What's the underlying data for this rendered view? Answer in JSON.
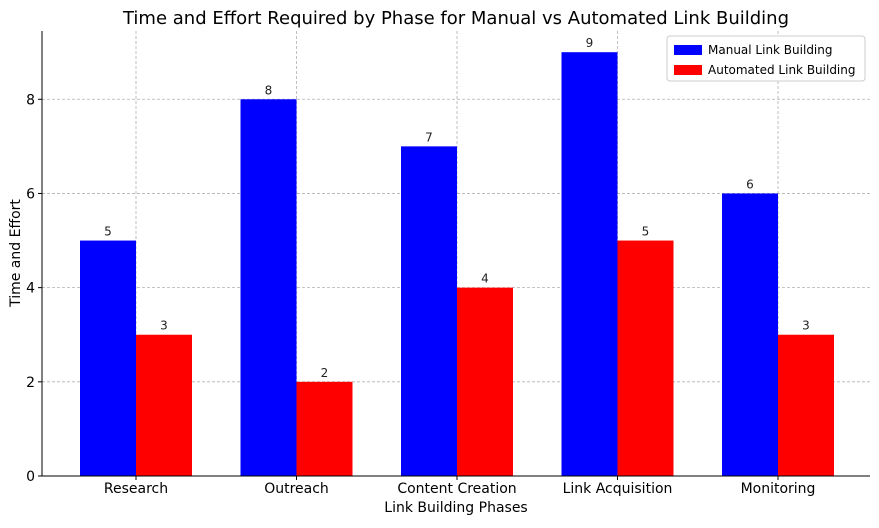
{
  "chart_data": {
    "type": "bar",
    "title": "Time and Effort Required by Phase for Manual vs Automated Link Building",
    "xlabel": "Link Building Phases",
    "ylabel": "Time and Effort",
    "categories": [
      "Research",
      "Outreach",
      "Content Creation",
      "Link Acquisition",
      "Monitoring"
    ],
    "series": [
      {
        "name": "Manual Link Building",
        "color": "#0000ff",
        "values": [
          5,
          8,
          7,
          9,
          6
        ]
      },
      {
        "name": "Automated Link Building",
        "color": "#ff0000",
        "values": [
          3,
          2,
          4,
          5,
          3
        ]
      }
    ],
    "ylim": [
      0,
      9.45
    ],
    "yticks": [
      0,
      2,
      4,
      6,
      8
    ],
    "grid": true,
    "legend_position": "top-right",
    "data_labels": true
  }
}
